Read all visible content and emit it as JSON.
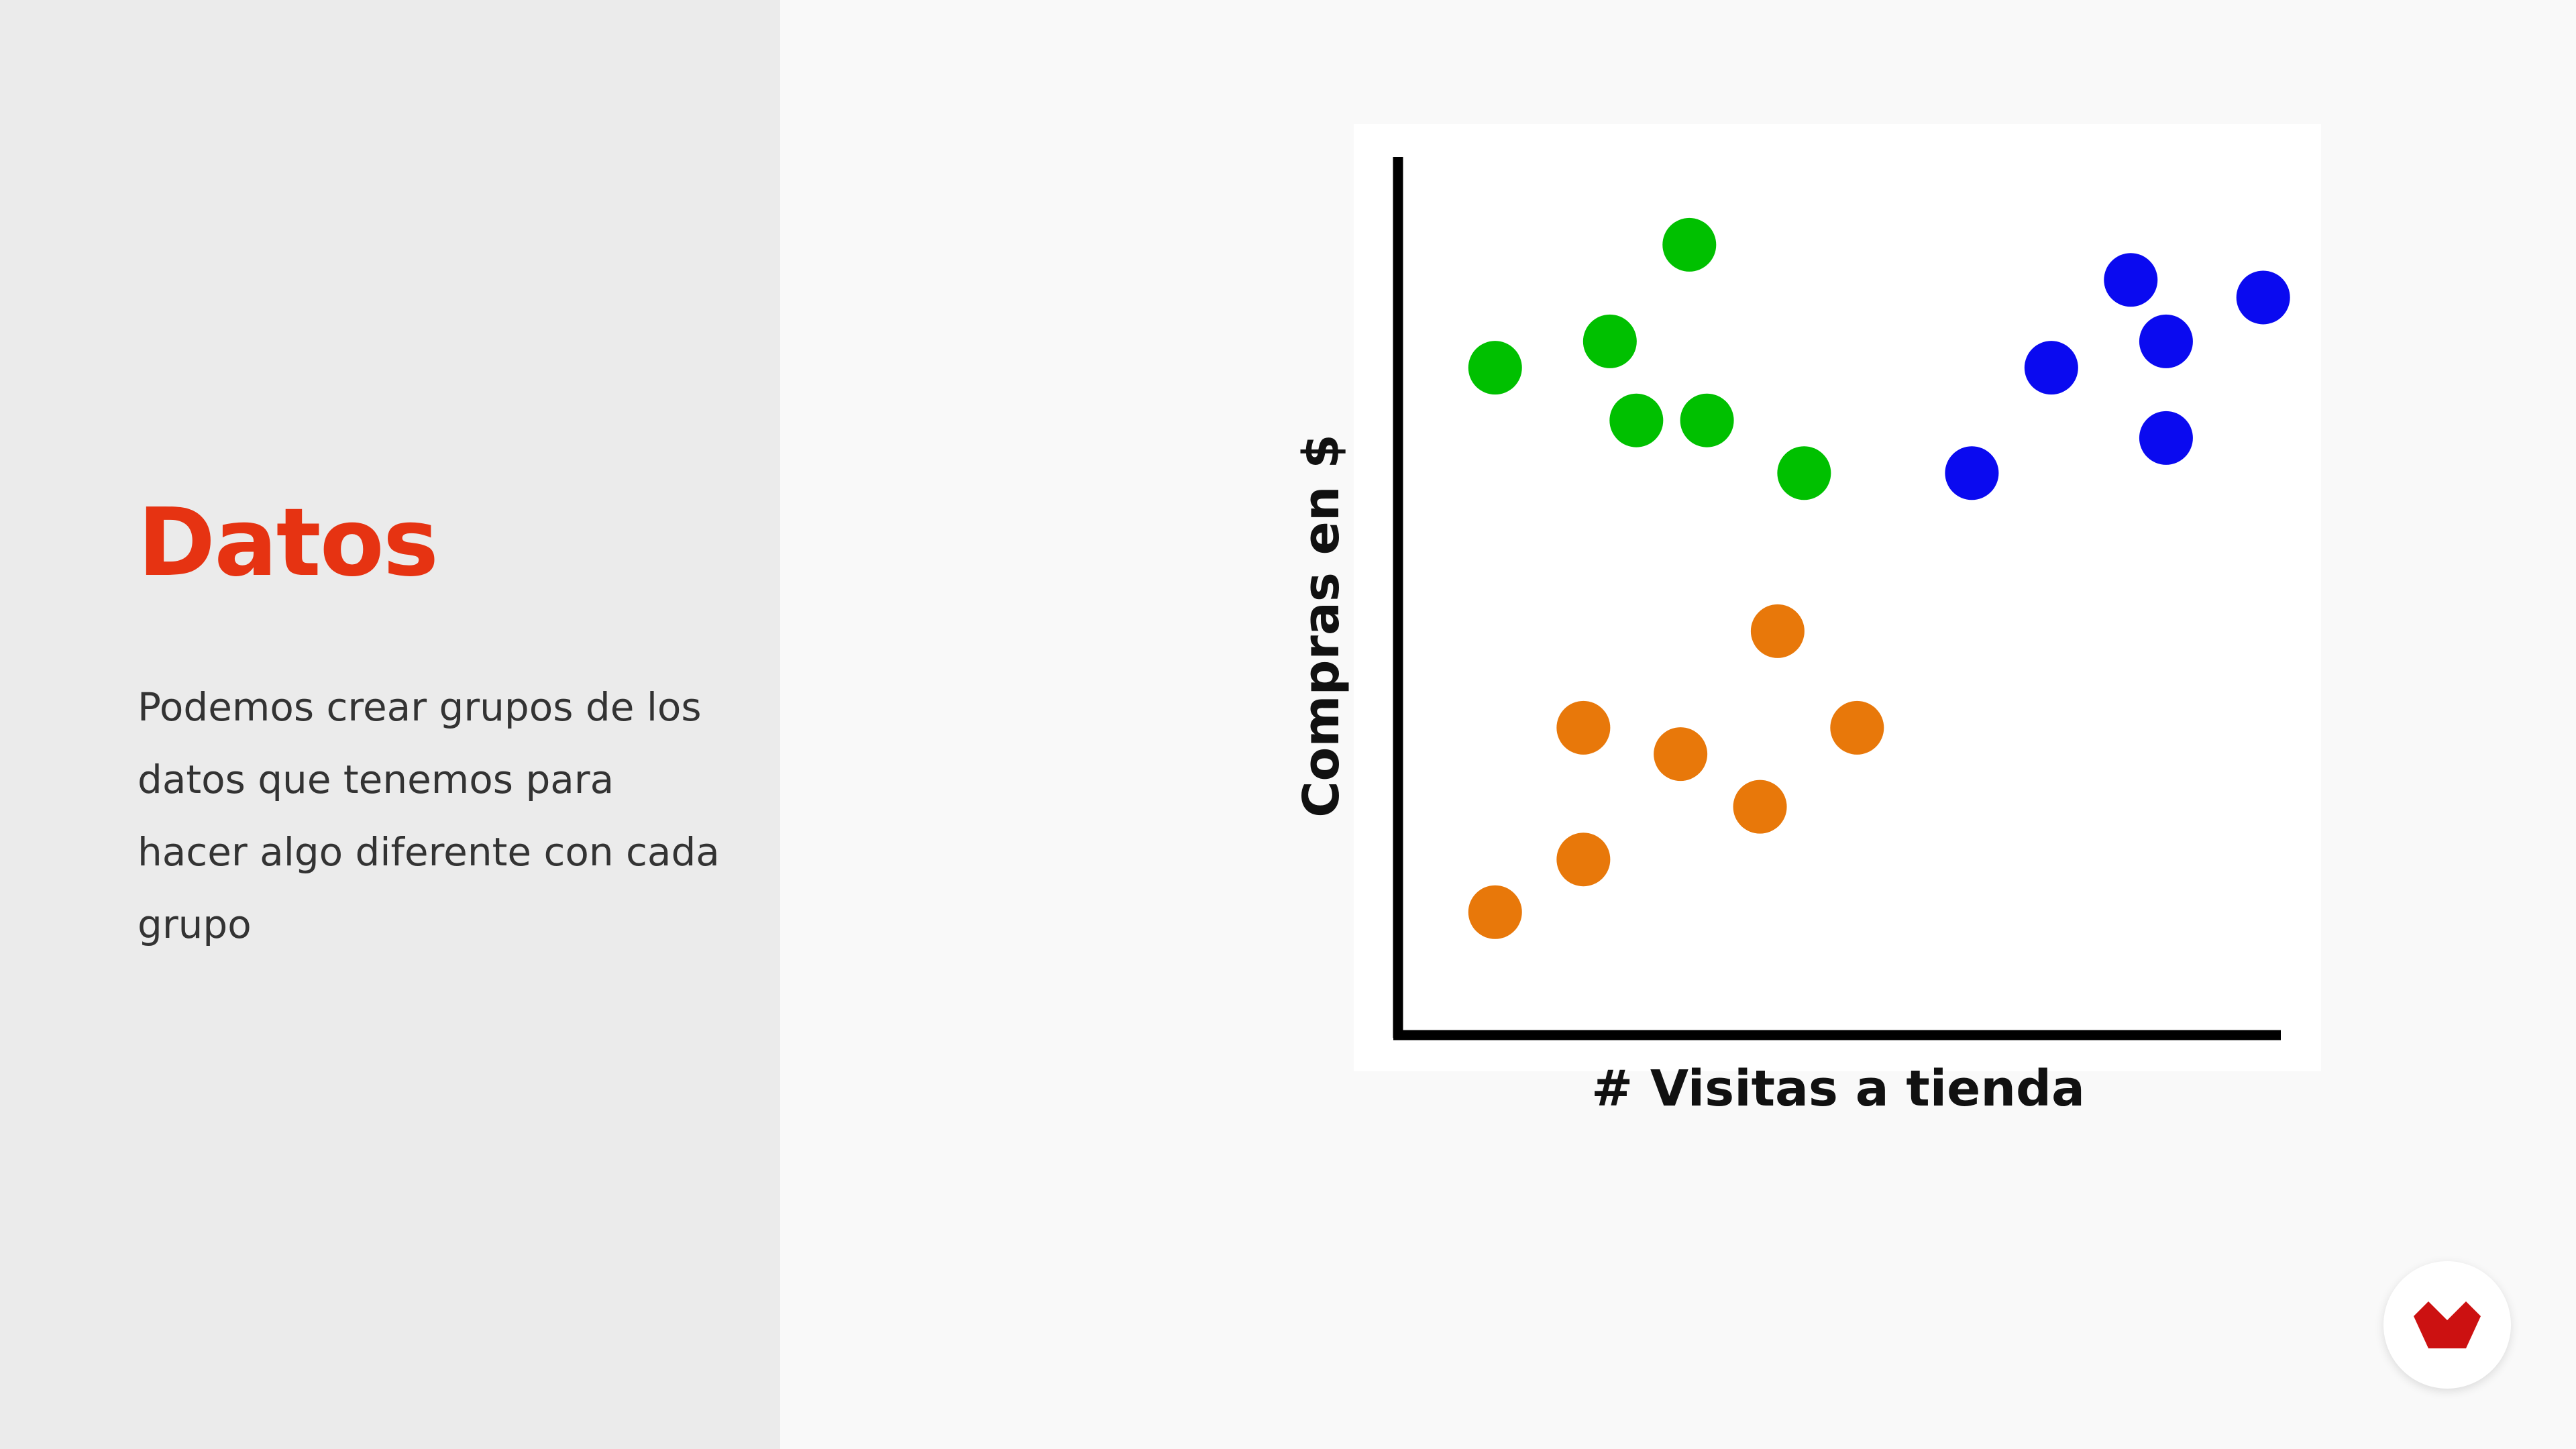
{
  "slide": {
    "title": "Datos",
    "body": "Podemos crear grupos de los datos que tenemos para hacer algo diferente con cada grupo"
  },
  "colors": {
    "accent": "#e63312",
    "sidebar_bg": "#ebebeb",
    "page_bg": "#f9f9f9",
    "logo": "#cc1111"
  },
  "logo": {
    "icon": "brand-logo-icon"
  },
  "chart_data": {
    "type": "scatter",
    "xlabel": "# Visitas a tienda",
    "ylabel": "Compras en $",
    "xlim": [
      0,
      100
    ],
    "ylim": [
      0,
      100
    ],
    "grid": false,
    "legend": "none",
    "series": [
      {
        "color": "#00c000",
        "x": [
          11,
          24,
          33,
          27,
          35,
          46
        ],
        "y": [
          76,
          79,
          90,
          70,
          70,
          64
        ]
      },
      {
        "color": "#0a0af0",
        "x": [
          74,
          83,
          87,
          87,
          98,
          65
        ],
        "y": [
          76,
          86,
          79,
          68,
          84,
          64
        ]
      },
      {
        "color": "#e8780a",
        "x": [
          21,
          32,
          43,
          41,
          52,
          11,
          21
        ],
        "y": [
          35,
          32,
          46,
          26,
          35,
          14,
          20
        ]
      }
    ]
  }
}
